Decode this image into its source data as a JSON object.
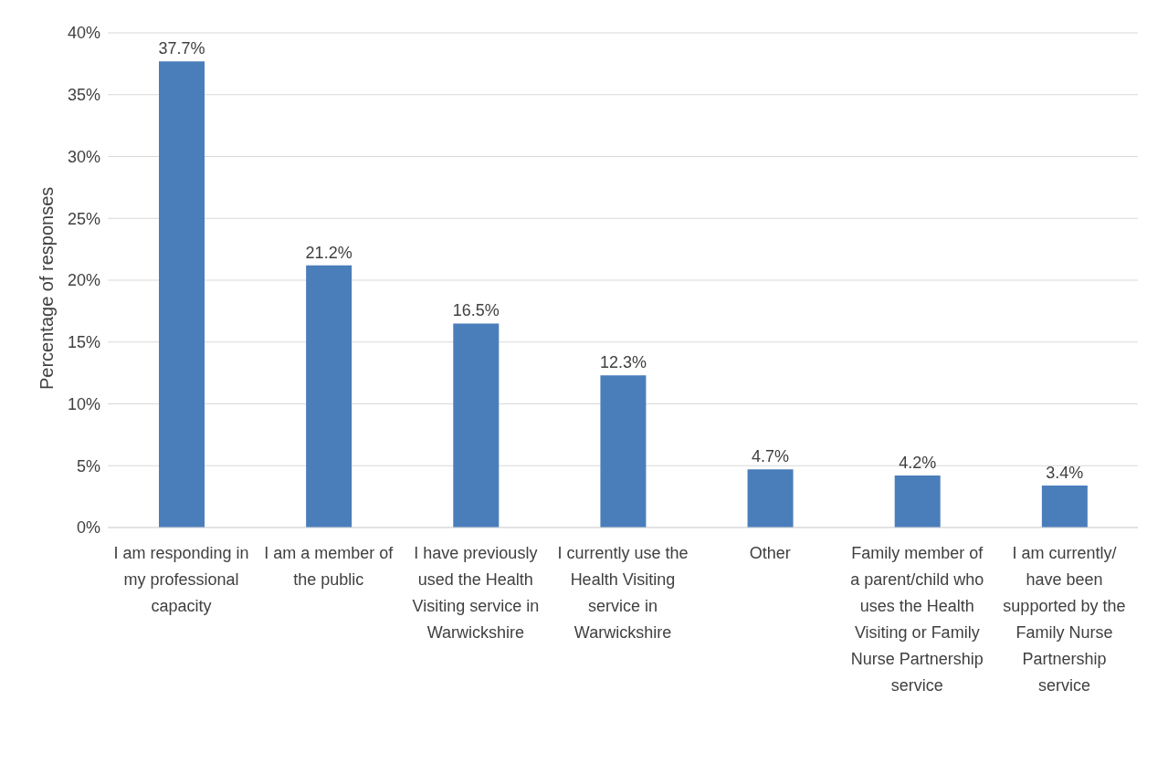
{
  "chart_data": {
    "type": "bar",
    "ylabel": "Percentage of responses",
    "categories": [
      "I am responding in my professional capacity",
      "I am a member of the public",
      "I have previously used the Health Visiting service in Warwickshire",
      "I currently use the Health Visiting service in Warwickshire",
      "Other",
      "Family member of a parent/child who uses the Health Visiting or Family Nurse Partnership service",
      "I am currently/ have been supported by the Family Nurse Partnership service"
    ],
    "values": [
      37.7,
      21.2,
      16.5,
      12.3,
      4.7,
      4.2,
      3.4
    ],
    "value_labels": [
      "37.7%",
      "21.2%",
      "16.5%",
      "12.3%",
      "4.7%",
      "4.2%",
      "3.4%"
    ],
    "color": "#4a7ebb",
    "ylim": [
      0,
      40
    ],
    "yticks": [
      {
        "value": 0,
        "label": "0%"
      },
      {
        "value": 5,
        "label": "5%"
      },
      {
        "value": 10,
        "label": "10%"
      },
      {
        "value": 15,
        "label": "15%"
      },
      {
        "value": 20,
        "label": "20%"
      },
      {
        "value": 25,
        "label": "25%"
      },
      {
        "value": 30,
        "label": "30%"
      },
      {
        "value": 35,
        "label": "35%"
      },
      {
        "value": 40,
        "label": "40%"
      }
    ],
    "grid": "y",
    "legend": false
  }
}
